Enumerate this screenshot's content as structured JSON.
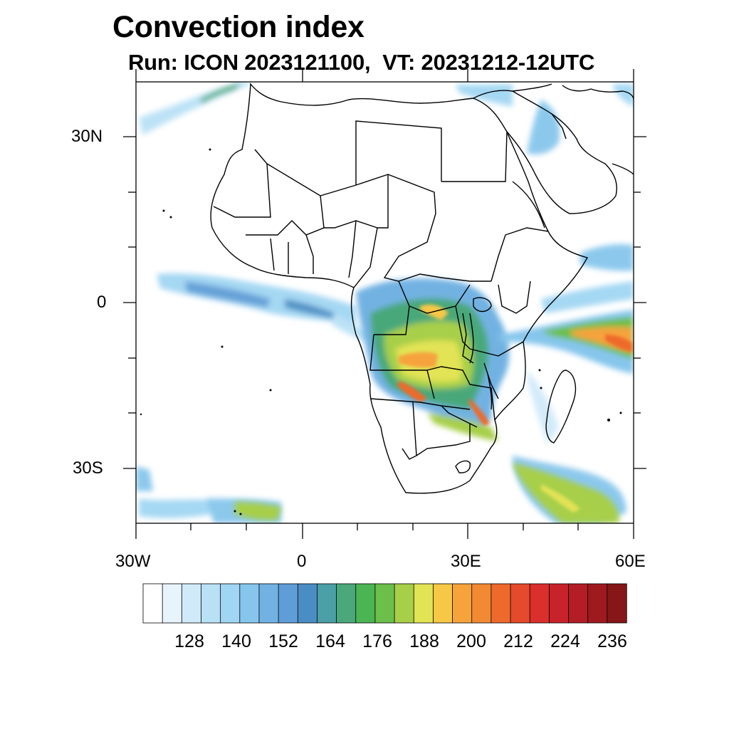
{
  "title": "Convection index",
  "subtitle": "Run: ICON 2023121100,  VT: 20231212-12UTC",
  "axes": {
    "lat_labels": [
      "30N",
      "0",
      "30S"
    ],
    "lon_labels": [
      "30W",
      "0",
      "30E",
      "60E"
    ]
  },
  "colorbar": {
    "ticks": [
      "128",
      "140",
      "152",
      "164",
      "176",
      "188",
      "200",
      "212",
      "224",
      "236"
    ],
    "colors": [
      "#ffffff",
      "#e8f4fc",
      "#d0eaf9",
      "#b9e1f6",
      "#a0d6f3",
      "#86c6ec",
      "#72b2e2",
      "#5f9dd6",
      "#4a8dc4",
      "#4b9fa6",
      "#4aa87a",
      "#4bb453",
      "#6cbf4a",
      "#a7cf4a",
      "#e2e355",
      "#f7c746",
      "#f6a33c",
      "#f18a33",
      "#ee6a2c",
      "#e44a2b",
      "#da2f2c",
      "#c8232a",
      "#b31d26",
      "#9e1a1f",
      "#861617"
    ]
  },
  "colors": {
    "land_outline": "#000000",
    "ocean": "#ffffff"
  }
}
